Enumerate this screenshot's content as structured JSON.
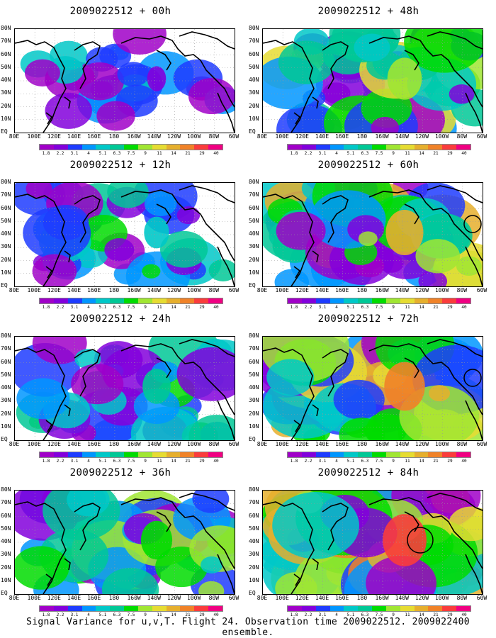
{
  "caption": "Signal Variance for u,v,T. Flight 24. Observation time 2009022512. 2009022400 ensemble.",
  "lat_labels": [
    "80N",
    "70N",
    "60N",
    "50N",
    "40N",
    "30N",
    "20N",
    "10N",
    "EQ"
  ],
  "lon_labels": [
    "80E",
    "100E",
    "120E",
    "140E",
    "160E",
    "180",
    "160W",
    "140W",
    "120W",
    "100W",
    "80W",
    "60W"
  ],
  "colorbar": {
    "labels": [
      "1.8",
      "2.2",
      "3.1",
      "4",
      "5.1",
      "6.3",
      "7.5",
      "9",
      "11",
      "14",
      "21",
      "29",
      "40"
    ],
    "colors": [
      "#a000c8",
      "#8200dc",
      "#1e3cff",
      "#0096ff",
      "#00c8c8",
      "#00c896",
      "#00dc00",
      "#a0e632",
      "#e6dc32",
      "#e6af2d",
      "#f08228",
      "#fa3c3c",
      "#f00082"
    ]
  },
  "panels": [
    {
      "title": "2009022512 + 00h",
      "intensity": 0.15,
      "circle": false
    },
    {
      "title": "2009022512 + 12h",
      "intensity": 0.35,
      "circle": false
    },
    {
      "title": "2009022512 + 24h",
      "intensity": 0.45,
      "circle": false
    },
    {
      "title": "2009022512 + 36h",
      "intensity": 0.55,
      "circle": false
    },
    {
      "title": "2009022512 + 48h",
      "intensity": 0.65,
      "circle": false
    },
    {
      "title": "2009022512 + 60h",
      "intensity": 0.75,
      "circle": true
    },
    {
      "title": "2009022512 + 72h",
      "intensity": 0.85,
      "circle": true
    },
    {
      "title": "2009022512 + 84h",
      "intensity": 0.95,
      "circle": true
    }
  ]
}
